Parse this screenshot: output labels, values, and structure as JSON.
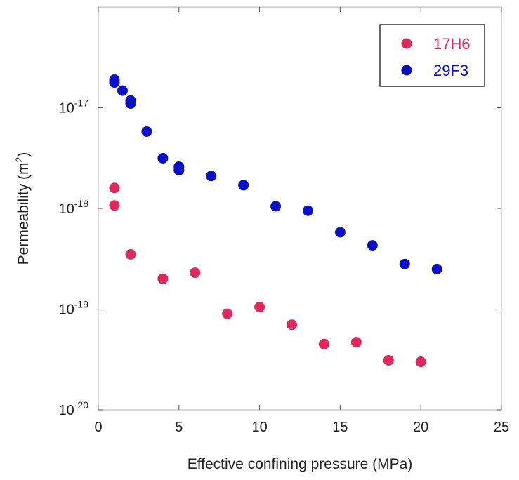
{
  "chart_data": {
    "type": "scatter",
    "title": "",
    "xlabel": "Effective confining pressure (MPa)",
    "ylabel_main": "Permeability (m",
    "ylabel_sup": "2",
    "ylabel_close": ")",
    "xlim": [
      0,
      25
    ],
    "ylim": [
      1e-20,
      1e-16
    ],
    "yscale": "log",
    "grid": false,
    "legend_position": "top-right",
    "x_ticks": [
      {
        "value": 0,
        "label": "0"
      },
      {
        "value": 5,
        "label": "5"
      },
      {
        "value": 10,
        "label": "10"
      },
      {
        "value": 15,
        "label": "15"
      },
      {
        "value": 20,
        "label": "20"
      },
      {
        "value": 25,
        "label": "25"
      }
    ],
    "y_ticks": [
      {
        "value": 1e-20,
        "base": "10",
        "exp": "-20"
      },
      {
        "value": 1e-19,
        "base": "10",
        "exp": "-19"
      },
      {
        "value": 1e-18,
        "base": "10",
        "exp": "-18"
      },
      {
        "value": 1e-17,
        "base": "10",
        "exp": "-17"
      }
    ],
    "series": [
      {
        "name": "17H6",
        "color": "#dc2a5c",
        "points": [
          [
            1.0,
            1.6e-18
          ],
          [
            1.0,
            1.07e-18
          ],
          [
            2.0,
            3.5e-19
          ],
          [
            4.0,
            2e-19
          ],
          [
            6.0,
            2.3e-19
          ],
          [
            8.0,
            9e-20
          ],
          [
            10.0,
            1.05e-19
          ],
          [
            12.0,
            7e-20
          ],
          [
            14.0,
            4.5e-20
          ],
          [
            16.0,
            4.7e-20
          ],
          [
            18.0,
            3.1e-20
          ],
          [
            20.0,
            3e-20
          ]
        ]
      },
      {
        "name": "29F3",
        "color": "#0c10c4",
        "points": [
          [
            1.0,
            1.9e-17
          ],
          [
            1.0,
            1.78e-17
          ],
          [
            1.5,
            1.48e-17
          ],
          [
            2.0,
            1.18e-17
          ],
          [
            2.0,
            1.1e-17
          ],
          [
            3.0,
            5.8e-18
          ],
          [
            4.0,
            3.15e-18
          ],
          [
            5.0,
            2.6e-18
          ],
          [
            5.0,
            2.4e-18
          ],
          [
            7.0,
            2.1e-18
          ],
          [
            9.0,
            1.7e-18
          ],
          [
            11.0,
            1.05e-18
          ],
          [
            13.0,
            9.5e-19
          ],
          [
            15.0,
            5.8e-19
          ],
          [
            17.0,
            4.3e-19
          ],
          [
            19.0,
            2.8e-19
          ],
          [
            21.0,
            2.5e-19
          ]
        ]
      }
    ]
  }
}
